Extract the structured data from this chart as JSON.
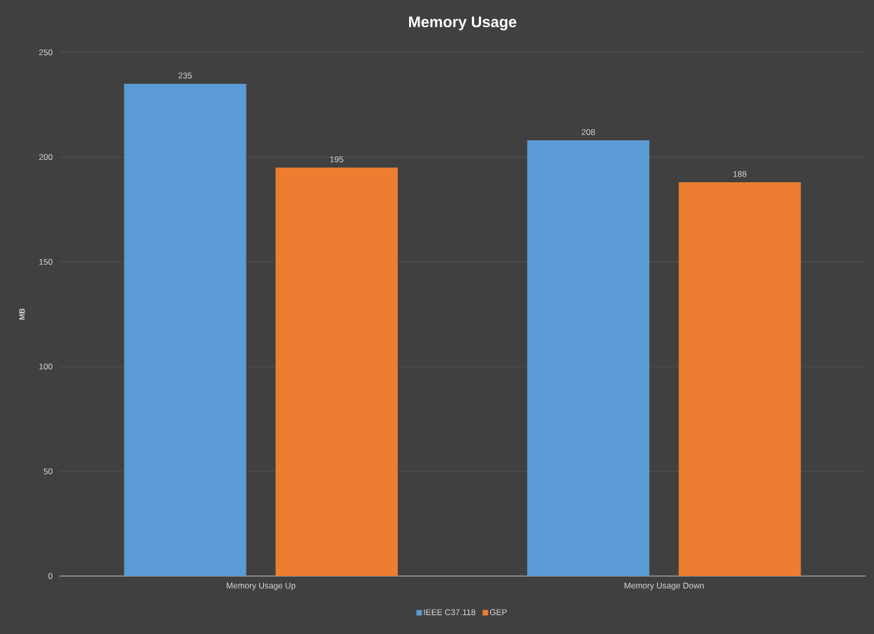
{
  "chart_data": {
    "type": "bar",
    "title": "Memory Usage",
    "ylabel": "MB",
    "categories": [
      "Memory Usage Up",
      "Memory Usage Down"
    ],
    "series": [
      {
        "name": "IEEE C37.118",
        "color": "#5b9bd5",
        "values": [
          235,
          208
        ]
      },
      {
        "name": "GEP",
        "color": "#ed7d31",
        "values": [
          195,
          188
        ]
      }
    ],
    "ylim": [
      0,
      250
    ],
    "yticks": [
      0,
      50,
      100,
      150,
      200,
      250
    ],
    "grid": "y",
    "legend": "bottom",
    "data_labels": true
  }
}
